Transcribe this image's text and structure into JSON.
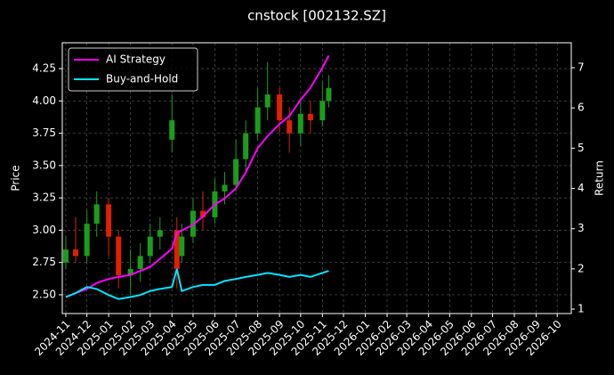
{
  "chart_data": {
    "type": "candlestick",
    "title": "cnstock [002132.SZ]",
    "y_label": "Price",
    "y2_label": "Return",
    "x": [
      "2024-11-01",
      "2024-11-15",
      "2024-12-01",
      "2024-12-15",
      "2025-01-01",
      "2025-01-15",
      "2025-02-01",
      "2025-02-15",
      "2025-03-01",
      "2025-03-15",
      "2025-04-01",
      "2025-04-08",
      "2025-04-15",
      "2025-05-01",
      "2025-05-15",
      "2025-06-01",
      "2025-06-15",
      "2025-07-01",
      "2025-07-15",
      "2025-08-01",
      "2025-08-15",
      "2025-09-01",
      "2025-09-15",
      "2025-10-01",
      "2025-10-15",
      "2025-11-01",
      "2025-11-10"
    ],
    "open": [
      2.75,
      2.85,
      2.8,
      3.05,
      3.2,
      2.95,
      2.65,
      2.7,
      2.8,
      2.95,
      3.7,
      3.0,
      2.8,
      2.95,
      3.15,
      3.1,
      3.3,
      3.35,
      3.55,
      3.75,
      3.95,
      4.05,
      3.85,
      3.75,
      3.9,
      3.85,
      4.0
    ],
    "high": [
      2.95,
      3.1,
      3.15,
      3.3,
      3.25,
      3.0,
      2.85,
      2.9,
      3.05,
      3.1,
      4.05,
      3.1,
      3.05,
      3.25,
      3.3,
      3.4,
      3.45,
      3.7,
      3.85,
      4.1,
      4.3,
      4.1,
      3.95,
      4.0,
      4.0,
      4.15,
      4.2
    ],
    "low": [
      2.7,
      2.75,
      2.75,
      2.95,
      2.8,
      2.55,
      2.5,
      2.6,
      2.75,
      2.85,
      3.6,
      2.55,
      2.75,
      2.9,
      3.0,
      3.05,
      3.2,
      3.3,
      3.45,
      3.7,
      3.85,
      3.75,
      3.6,
      3.65,
      3.75,
      3.8,
      3.95
    ],
    "close": [
      2.85,
      2.8,
      3.05,
      3.2,
      2.95,
      2.65,
      2.7,
      2.8,
      2.95,
      3.0,
      3.85,
      2.7,
      2.95,
      3.15,
      3.1,
      3.3,
      3.35,
      3.55,
      3.75,
      3.95,
      4.05,
      3.85,
      3.75,
      3.9,
      3.85,
      4.0,
      4.1
    ],
    "up_color": "#1a9e1a",
    "down_color": "#e02000",
    "series": [
      {
        "name": "AI Strategy",
        "color": "#ff00ff",
        "axis": "y2",
        "values": [
          1.3,
          1.4,
          1.5,
          1.65,
          1.75,
          1.8,
          1.85,
          1.95,
          2.05,
          2.25,
          2.5,
          2.9,
          2.95,
          3.1,
          3.3,
          3.6,
          3.75,
          4.0,
          4.4,
          5.0,
          5.3,
          5.6,
          5.8,
          6.2,
          6.5,
          7.0,
          7.3
        ]
      },
      {
        "name": "Buy-and-Hold",
        "color": "#00e5ff",
        "axis": "y2",
        "values": [
          1.3,
          1.4,
          1.55,
          1.5,
          1.35,
          1.25,
          1.3,
          1.35,
          1.45,
          1.5,
          1.55,
          2.0,
          1.45,
          1.55,
          1.6,
          1.6,
          1.7,
          1.75,
          1.8,
          1.85,
          1.9,
          1.85,
          1.8,
          1.85,
          1.8,
          1.9,
          1.95
        ]
      }
    ],
    "xlim": [
      "2024-10-27",
      "2026-10-21"
    ],
    "xticks": [
      "2024-11",
      "2024-12",
      "2025-01",
      "2025-02",
      "2025-03",
      "2025-04",
      "2025-05",
      "2025-06",
      "2025-07",
      "2025-08",
      "2025-09",
      "2025-10",
      "2025-11",
      "2025-12",
      "2026-01",
      "2026-02",
      "2026-03",
      "2026-04",
      "2026-05",
      "2026-06",
      "2026-07",
      "2026-08",
      "2026-09",
      "2026-10"
    ],
    "ylim": [
      2.355,
      4.45
    ],
    "yticks": [
      2.5,
      2.75,
      3.0,
      3.25,
      3.5,
      3.75,
      4.0,
      4.25
    ],
    "yticklabel_decimals": 2,
    "y2lim": [
      0.89,
      7.62
    ],
    "y2ticks": [
      1,
      2,
      3,
      4,
      5,
      6,
      7
    ],
    "grid": true,
    "legend": "upper left"
  }
}
